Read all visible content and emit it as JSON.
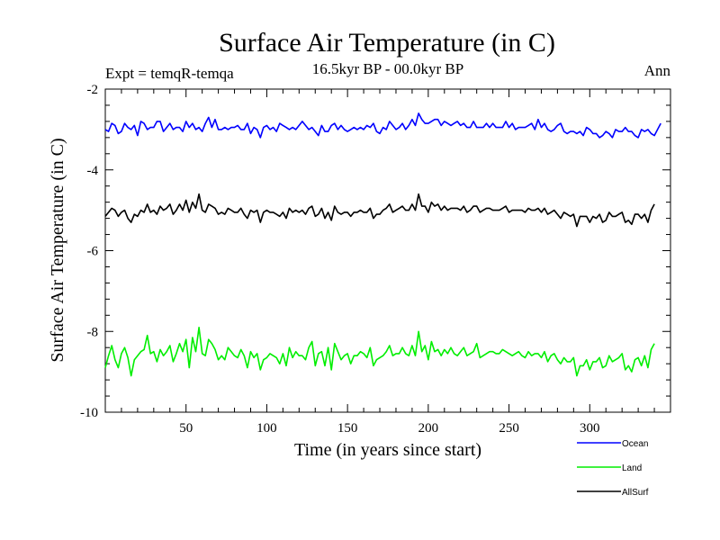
{
  "chart_data": {
    "type": "line",
    "title": "Surface Air Temperature (in C)",
    "subtitle": "16.5kyr BP - 00.0kyr BP",
    "left_label": "Expt = temqR-temqa",
    "right_label": "Ann",
    "xlabel": "Time (in years since start)",
    "ylabel": "Surface Air Temperature (in C)",
    "xlim": [
      0,
      350
    ],
    "ylim": [
      -10,
      -2
    ],
    "x_ticks": [
      50,
      100,
      150,
      200,
      250,
      300
    ],
    "x_tick_labels": [
      "50",
      "100",
      "150",
      "200",
      "250",
      "300"
    ],
    "y_ticks": [
      -10,
      -8,
      -6,
      -4,
      -2
    ],
    "y_tick_labels": [
      "-10",
      "-8",
      "-6",
      "-4",
      "-2"
    ],
    "grid": false,
    "legend_position": "bottom-right",
    "series": [
      {
        "name": "Ocean",
        "color": "#0000ff",
        "x_start": 0,
        "x_step": 2,
        "values": [
          -3.0,
          -3.05,
          -2.85,
          -2.9,
          -3.1,
          -3.05,
          -2.85,
          -2.95,
          -3.0,
          -2.9,
          -3.15,
          -2.8,
          -2.85,
          -3.0,
          -2.95,
          -2.95,
          -2.8,
          -2.8,
          -3.05,
          -2.95,
          -2.85,
          -3.0,
          -2.95,
          -2.95,
          -3.05,
          -2.8,
          -2.95,
          -2.85,
          -3.0,
          -2.95,
          -3.05,
          -2.85,
          -2.7,
          -2.95,
          -2.75,
          -3.0,
          -3.0,
          -2.95,
          -3.0,
          -2.95,
          -2.95,
          -2.9,
          -3.0,
          -3.0,
          -2.85,
          -3.1,
          -2.95,
          -3.0,
          -3.2,
          -2.95,
          -2.9,
          -3.0,
          -2.95,
          -3.05,
          -2.85,
          -2.9,
          -2.95,
          -3.0,
          -2.95,
          -3.0,
          -2.9,
          -2.8,
          -2.9,
          -3.0,
          -2.95,
          -3.05,
          -3.15,
          -2.9,
          -3.05,
          -3.05,
          -2.9,
          -2.85,
          -3.0,
          -2.9,
          -3.0,
          -3.05,
          -3.0,
          -2.95,
          -3.0,
          -2.95,
          -3.0,
          -2.9,
          -2.95,
          -2.85,
          -3.05,
          -3.1,
          -2.95,
          -3.0,
          -2.8,
          -2.9,
          -3.0,
          -2.95,
          -2.85,
          -3.0,
          -2.9,
          -2.75,
          -2.9,
          -2.6,
          -2.75,
          -2.85,
          -2.85,
          -2.8,
          -2.75,
          -2.75,
          -2.9,
          -2.8,
          -2.85,
          -2.9,
          -2.85,
          -2.8,
          -2.9,
          -2.85,
          -2.95,
          -2.95,
          -2.8,
          -2.95,
          -2.95,
          -2.95,
          -2.85,
          -2.95,
          -2.85,
          -2.95,
          -2.95,
          -2.95,
          -2.8,
          -2.95,
          -2.85,
          -3.0,
          -2.95,
          -2.95,
          -2.95,
          -2.9,
          -2.85,
          -3.0,
          -2.75,
          -2.95,
          -2.85,
          -3.0,
          -3.05,
          -3.0,
          -2.9,
          -2.85,
          -3.05,
          -3.1,
          -3.05,
          -3.05,
          -3.1,
          -3.05,
          -3.15,
          -2.95,
          -3.0,
          -3.1,
          -3.1,
          -3.2,
          -3.15,
          -3.05,
          -3.1,
          -3.2,
          -3.0,
          -3.05,
          -3.05,
          -2.95,
          -3.05,
          -3.05,
          -3.15,
          -3.2,
          -3.0,
          -3.05,
          -3.0,
          -3.1,
          -3.15,
          -3.0,
          -2.85
        ]
      },
      {
        "name": "Land",
        "color": "#00ee00",
        "x_start": 0,
        "x_step": 2,
        "values": [
          -8.9,
          -8.6,
          -8.35,
          -8.7,
          -8.9,
          -8.55,
          -8.4,
          -8.65,
          -9.1,
          -8.7,
          -8.6,
          -8.5,
          -8.45,
          -8.1,
          -8.55,
          -8.5,
          -8.75,
          -8.45,
          -8.6,
          -8.5,
          -8.35,
          -8.75,
          -8.55,
          -8.3,
          -8.5,
          -8.2,
          -8.9,
          -8.15,
          -8.5,
          -7.9,
          -8.55,
          -8.6,
          -8.2,
          -8.3,
          -8.45,
          -8.7,
          -8.6,
          -8.7,
          -8.4,
          -8.5,
          -8.6,
          -8.65,
          -8.45,
          -8.6,
          -8.9,
          -8.5,
          -8.65,
          -8.55,
          -8.95,
          -8.7,
          -8.65,
          -8.55,
          -8.6,
          -8.65,
          -8.8,
          -8.55,
          -8.85,
          -8.4,
          -8.65,
          -8.5,
          -8.6,
          -8.6,
          -8.7,
          -8.4,
          -8.25,
          -8.85,
          -8.55,
          -8.5,
          -8.85,
          -8.4,
          -8.95,
          -8.3,
          -8.5,
          -8.7,
          -8.6,
          -8.55,
          -8.8,
          -8.6,
          -8.6,
          -8.5,
          -8.55,
          -8.65,
          -8.4,
          -8.85,
          -8.7,
          -8.65,
          -8.6,
          -8.5,
          -8.35,
          -8.6,
          -8.55,
          -8.55,
          -8.4,
          -8.55,
          -8.6,
          -8.35,
          -8.6,
          -8.0,
          -8.5,
          -8.35,
          -8.7,
          -8.25,
          -8.5,
          -8.45,
          -8.6,
          -8.45,
          -8.55,
          -8.4,
          -8.55,
          -8.6,
          -8.5,
          -8.4,
          -8.6,
          -8.55,
          -8.5,
          -8.3,
          -8.65,
          -8.6,
          -8.55,
          -8.5,
          -8.5,
          -8.55,
          -8.55,
          -8.45,
          -8.5,
          -8.55,
          -8.6,
          -8.55,
          -8.5,
          -8.6,
          -8.65,
          -8.5,
          -8.6,
          -8.55,
          -8.55,
          -8.65,
          -8.5,
          -8.75,
          -8.6,
          -8.55,
          -8.7,
          -8.8,
          -8.65,
          -8.75,
          -8.75,
          -8.65,
          -9.1,
          -8.85,
          -8.85,
          -8.7,
          -8.95,
          -8.75,
          -8.75,
          -8.65,
          -8.9,
          -8.85,
          -8.6,
          -8.75,
          -8.7,
          -8.65,
          -8.55,
          -8.95,
          -8.85,
          -9.0,
          -8.7,
          -8.65,
          -8.85,
          -8.6,
          -8.9,
          -8.45,
          -8.3
        ]
      },
      {
        "name": "AllSurf",
        "color": "#000000",
        "x_start": 0,
        "x_step": 2,
        "values": [
          -5.15,
          -5.05,
          -4.95,
          -5.0,
          -5.15,
          -5.05,
          -5.0,
          -5.2,
          -5.3,
          -5.1,
          -5.15,
          -5.0,
          -5.05,
          -4.85,
          -5.05,
          -5.0,
          -5.1,
          -4.9,
          -5.0,
          -4.95,
          -4.85,
          -5.1,
          -5.0,
          -4.85,
          -5.0,
          -4.75,
          -5.05,
          -4.8,
          -4.95,
          -4.6,
          -5.0,
          -5.05,
          -4.85,
          -4.9,
          -4.95,
          -5.1,
          -5.05,
          -5.1,
          -4.95,
          -5.0,
          -5.05,
          -5.05,
          -4.95,
          -5.1,
          -5.2,
          -5.0,
          -5.05,
          -5.0,
          -5.3,
          -5.05,
          -5.0,
          -5.05,
          -5.05,
          -5.1,
          -5.15,
          -5.05,
          -5.2,
          -4.95,
          -5.05,
          -5.0,
          -5.05,
          -5.0,
          -5.1,
          -4.95,
          -4.9,
          -5.15,
          -5.1,
          -4.95,
          -5.2,
          -5.05,
          -5.25,
          -4.9,
          -5.05,
          -5.1,
          -5.05,
          -5.05,
          -5.15,
          -5.05,
          -5.05,
          -5.0,
          -5.05,
          -5.05,
          -4.95,
          -5.2,
          -5.1,
          -5.1,
          -5.0,
          -4.95,
          -4.85,
          -5.05,
          -5.0,
          -4.95,
          -4.9,
          -5.0,
          -5.0,
          -4.85,
          -5.0,
          -4.6,
          -4.9,
          -4.9,
          -5.05,
          -4.8,
          -4.9,
          -4.85,
          -5.0,
          -4.9,
          -5.0,
          -4.95,
          -4.95,
          -4.95,
          -5.0,
          -4.9,
          -5.05,
          -5.0,
          -4.9,
          -4.9,
          -5.05,
          -5.0,
          -4.95,
          -4.95,
          -5.0,
          -5.0,
          -5.0,
          -4.95,
          -4.9,
          -5.05,
          -5.0,
          -5.0,
          -5.0,
          -5.0,
          -5.05,
          -4.95,
          -5.0,
          -5.0,
          -4.95,
          -5.05,
          -4.95,
          -5.1,
          -5.05,
          -5.0,
          -5.1,
          -5.2,
          -5.05,
          -5.1,
          -5.15,
          -5.1,
          -5.4,
          -5.15,
          -5.15,
          -5.15,
          -5.3,
          -5.15,
          -5.2,
          -5.1,
          -5.3,
          -5.25,
          -5.05,
          -5.15,
          -5.15,
          -5.1,
          -5.05,
          -5.3,
          -5.25,
          -5.35,
          -5.1,
          -5.1,
          -5.2,
          -5.1,
          -5.3,
          -5.0,
          -4.85
        ]
      }
    ]
  }
}
